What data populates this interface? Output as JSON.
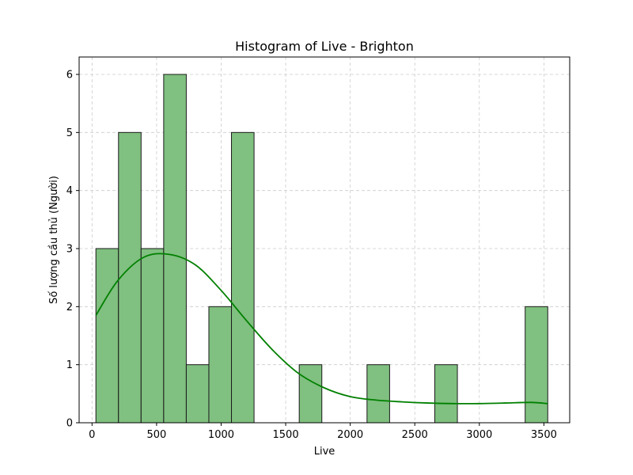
{
  "chart_data": {
    "type": "bar",
    "title": "Histogram of Live - Brighton",
    "xlabel": "Live",
    "ylabel": "Số lượng cầu thủ (Người)",
    "xlim": [
      -100,
      3700
    ],
    "ylim": [
      0,
      6.3
    ],
    "xticks": [
      0,
      500,
      1000,
      1500,
      2000,
      2500,
      3000,
      3500
    ],
    "yticks": [
      0,
      1,
      2,
      3,
      4,
      5,
      6
    ],
    "grid": true,
    "bins": [
      {
        "start": 30,
        "end": 205,
        "count": 3
      },
      {
        "start": 205,
        "end": 380,
        "count": 5
      },
      {
        "start": 380,
        "end": 555,
        "count": 3
      },
      {
        "start": 555,
        "end": 730,
        "count": 6
      },
      {
        "start": 730,
        "end": 905,
        "count": 1
      },
      {
        "start": 905,
        "end": 1080,
        "count": 2
      },
      {
        "start": 1080,
        "end": 1255,
        "count": 5
      },
      {
        "start": 1255,
        "end": 1430,
        "count": 0
      },
      {
        "start": 1430,
        "end": 1605,
        "count": 0
      },
      {
        "start": 1605,
        "end": 1780,
        "count": 1
      },
      {
        "start": 1780,
        "end": 1955,
        "count": 0
      },
      {
        "start": 1955,
        "end": 2130,
        "count": 0
      },
      {
        "start": 2130,
        "end": 2305,
        "count": 1
      },
      {
        "start": 2305,
        "end": 2480,
        "count": 0
      },
      {
        "start": 2480,
        "end": 2655,
        "count": 0
      },
      {
        "start": 2655,
        "end": 2830,
        "count": 1
      },
      {
        "start": 2830,
        "end": 3005,
        "count": 0
      },
      {
        "start": 3005,
        "end": 3180,
        "count": 0
      },
      {
        "start": 3180,
        "end": 3355,
        "count": 0
      },
      {
        "start": 3355,
        "end": 3530,
        "count": 2
      }
    ],
    "kde": {
      "x": [
        30,
        200,
        400,
        600,
        800,
        1000,
        1200,
        1400,
        1600,
        1800,
        2000,
        2200,
        2400,
        2600,
        2800,
        3000,
        3200,
        3400,
        3530
      ],
      "y": [
        1.85,
        2.45,
        2.85,
        2.9,
        2.72,
        2.28,
        1.75,
        1.25,
        0.85,
        0.6,
        0.45,
        0.39,
        0.36,
        0.34,
        0.33,
        0.33,
        0.34,
        0.35,
        0.33
      ]
    },
    "colors": {
      "bar_fill": "#80c080",
      "bar_edge": "#1a1a1a",
      "kde_line": "#008000",
      "grid": "#cccccc"
    }
  }
}
